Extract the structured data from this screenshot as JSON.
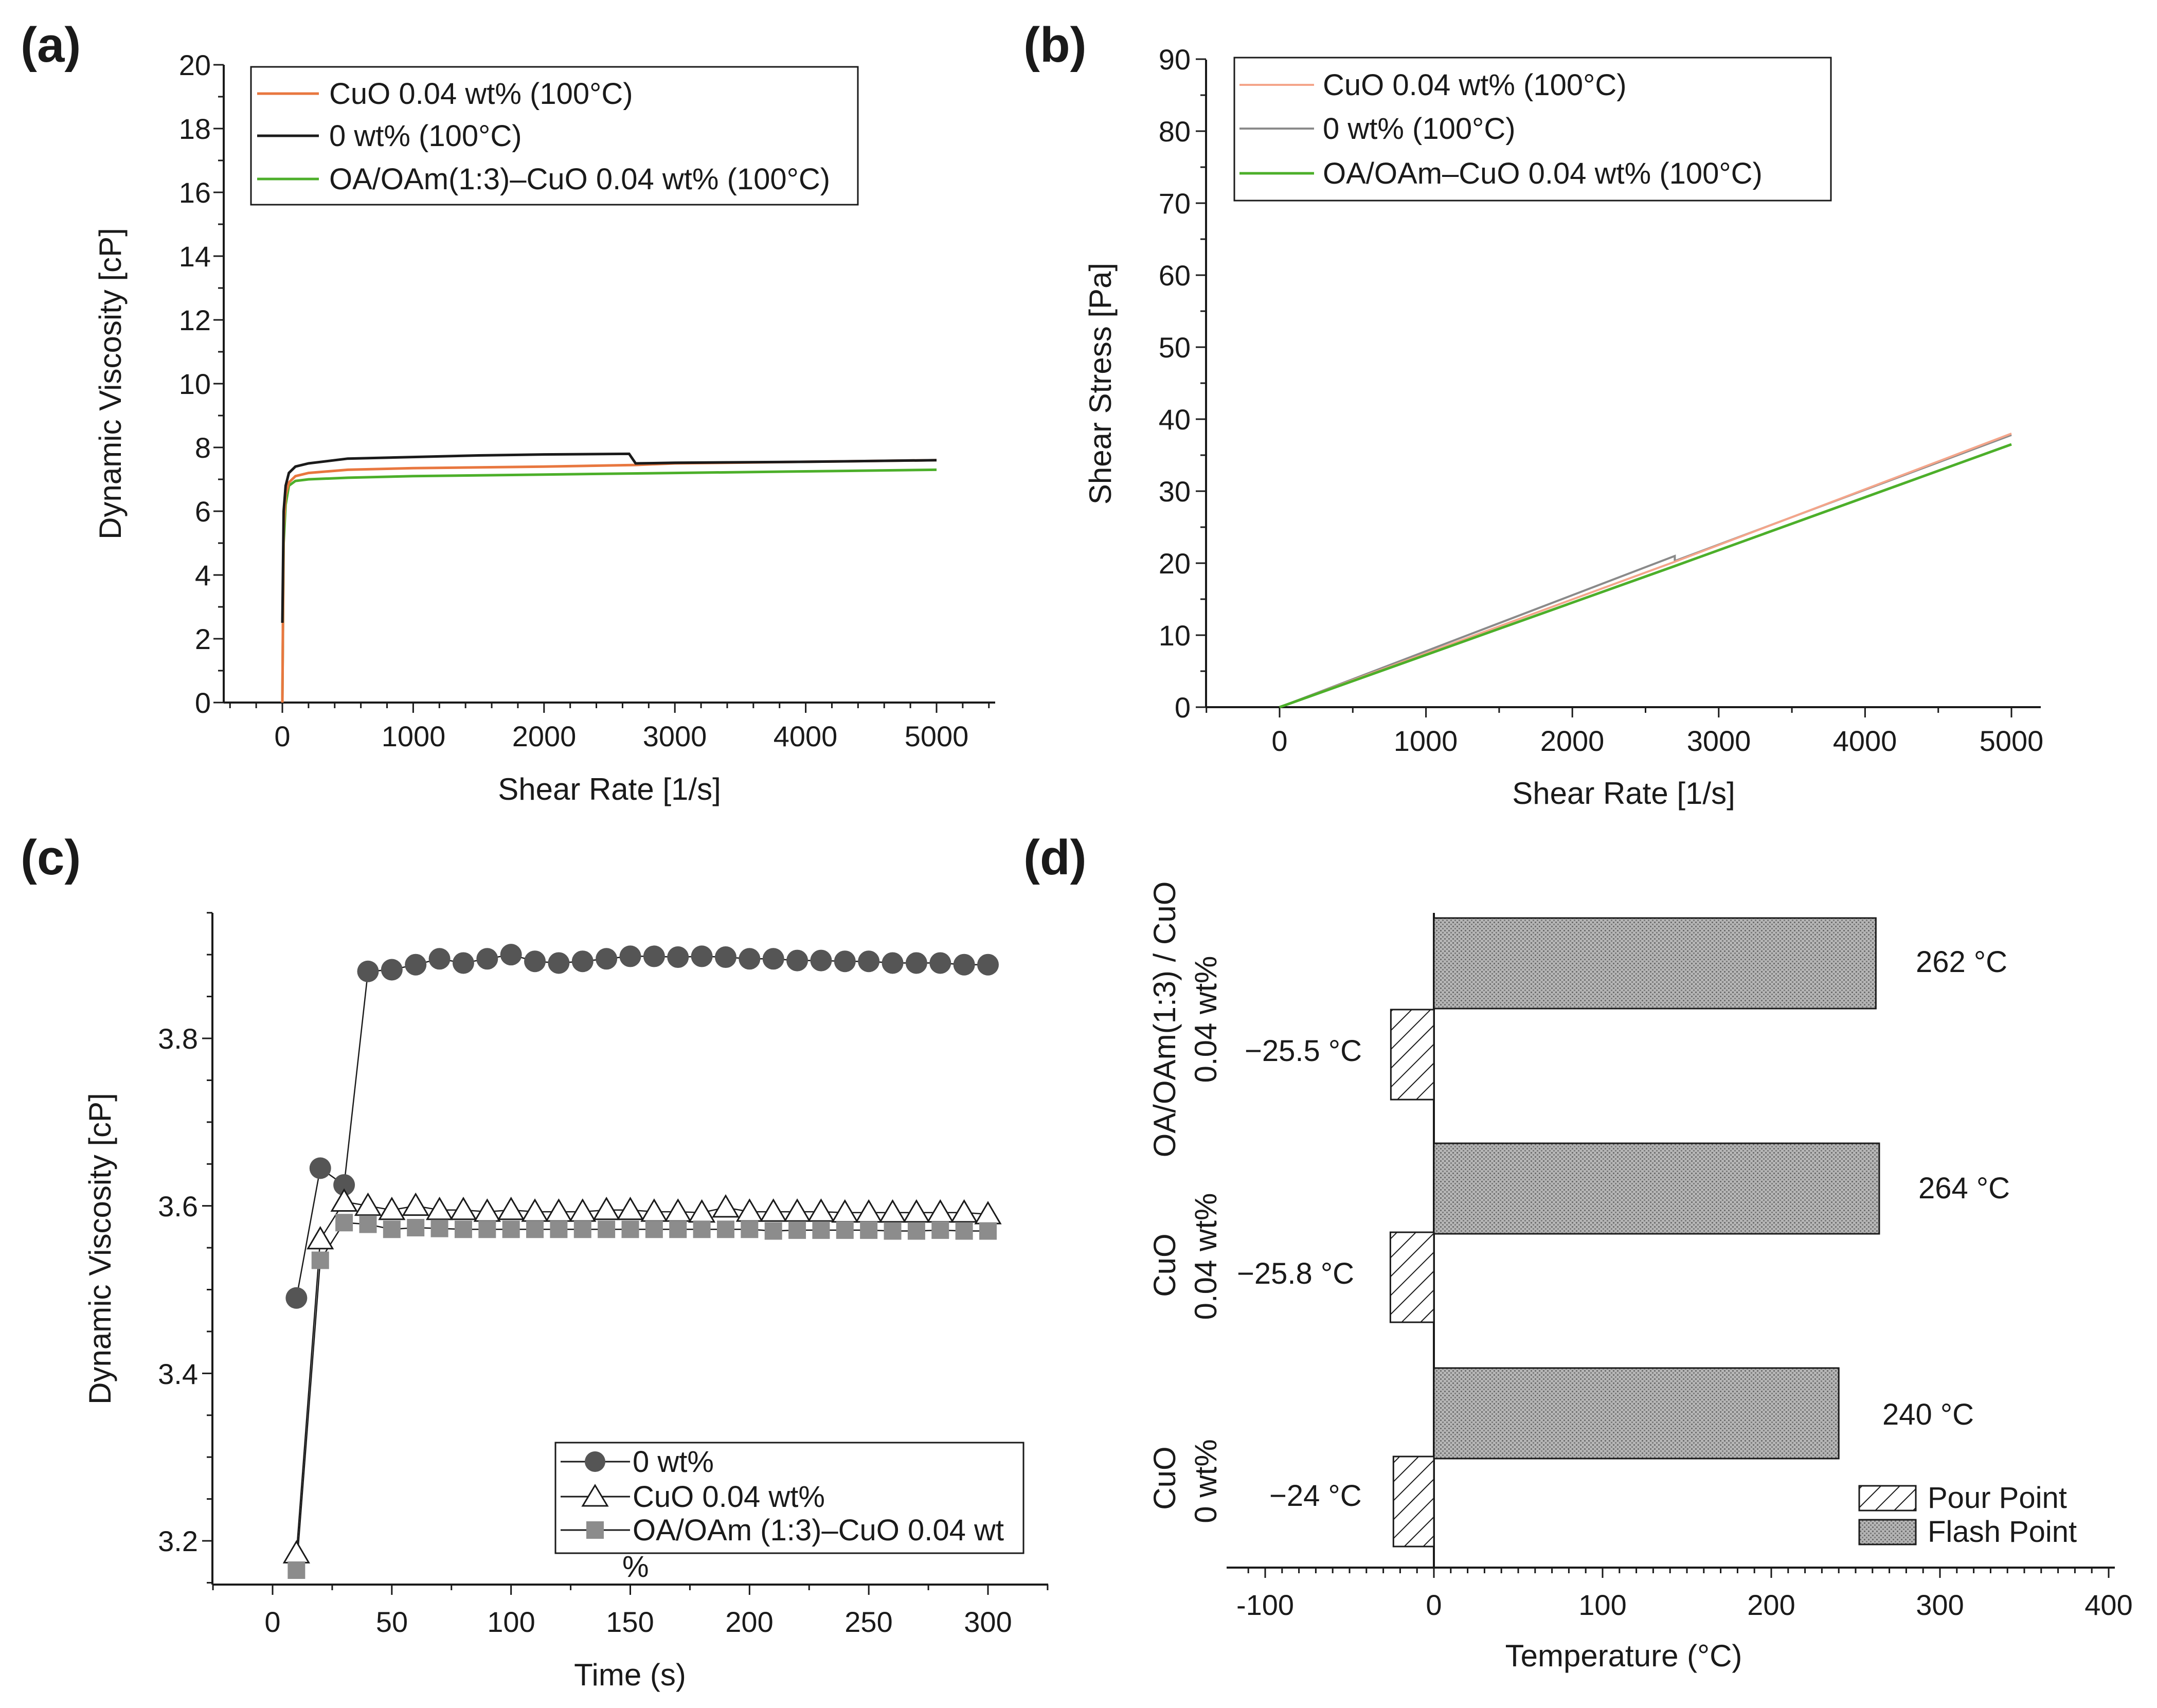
{
  "chart_data": [
    {
      "id": "a",
      "panel_label": "(a)",
      "type": "line",
      "xlabel": "Shear Rate [1/s]",
      "ylabel": "Dynamic Viscosity [cP]",
      "xlim": [
        -400,
        5500
      ],
      "ylim": [
        0,
        20
      ],
      "xticks": [
        "0",
        "1000",
        "2000",
        "3000",
        "4000",
        "5000"
      ],
      "yticks": [
        "0",
        "2",
        "4",
        "6",
        "8",
        "10",
        "12",
        "14",
        "16",
        "18",
        "20"
      ],
      "legend": [
        "CuO 0.04 wt% (100°C)",
        "0 wt% (100°C)",
        "OA/OAm(1:3)–CuO 0.04 wt% (100°C)"
      ],
      "series": [
        {
          "name": "CuO 0.04 wt% (100°C)",
          "color": "#e8773f",
          "x": [
            0,
            10,
            25,
            50,
            100,
            200,
            500,
            1000,
            2000,
            2700,
            3000,
            4000,
            5000
          ],
          "y": [
            0,
            5.5,
            6.5,
            6.9,
            7.1,
            7.2,
            7.3,
            7.35,
            7.4,
            7.45,
            7.5,
            7.55,
            7.6
          ]
        },
        {
          "name": "0 wt% (100°C)",
          "color": "#1a1a1a",
          "x": [
            0,
            10,
            25,
            50,
            100,
            200,
            500,
            1000,
            1500,
            2000,
            2650,
            2700,
            3000,
            4000,
            5000
          ],
          "y": [
            2.5,
            6.0,
            6.8,
            7.2,
            7.4,
            7.5,
            7.65,
            7.7,
            7.75,
            7.78,
            7.8,
            7.5,
            7.52,
            7.55,
            7.6
          ]
        },
        {
          "name": "OA/OAm(1:3)–CuO 0.04 wt% (100°C)",
          "color": "#4caf2a",
          "x": [
            0,
            10,
            25,
            50,
            100,
            200,
            500,
            1000,
            2000,
            3000,
            4000,
            5000
          ],
          "y": [
            0,
            5.0,
            6.2,
            6.8,
            6.95,
            7.0,
            7.05,
            7.1,
            7.15,
            7.2,
            7.25,
            7.3
          ]
        }
      ]
    },
    {
      "id": "b",
      "panel_label": "(b)",
      "type": "line",
      "xlabel": "Shear Rate [1/s]",
      "ylabel": "Shear Stress [Pa]",
      "xlim": [
        -500,
        5200
      ],
      "ylim": [
        0,
        90
      ],
      "xticks": [
        "0",
        "1000",
        "2000",
        "3000",
        "4000",
        "5000"
      ],
      "yticks": [
        "0",
        "10",
        "20",
        "30",
        "40",
        "50",
        "60",
        "70",
        "80",
        "90"
      ],
      "legend": [
        "CuO 0.04 wt% (100°C)",
        "0 wt% (100°C)",
        "OA/OAm–CuO 0.04 wt% (100°C)"
      ],
      "series": [
        {
          "name": "CuO 0.04 wt% (100°C)",
          "color": "#f4a58a",
          "x": [
            0,
            2700,
            5000
          ],
          "y": [
            0,
            20.2,
            38.0
          ]
        },
        {
          "name": "0 wt% (100°C)",
          "color": "#8a8a8a",
          "x": [
            0,
            2700,
            2700,
            5000
          ],
          "y": [
            0,
            21.0,
            20.3,
            37.8
          ]
        },
        {
          "name": "OA/OAm–CuO 0.04 wt% (100°C)",
          "color": "#4caf2a",
          "x": [
            0,
            2700,
            5000
          ],
          "y": [
            0,
            19.6,
            36.5
          ]
        }
      ]
    },
    {
      "id": "c",
      "panel_label": "(c)",
      "type": "scatter",
      "xlabel": "Time (s)",
      "ylabel": "Dynamic Viscosity [cP]",
      "xlim": [
        -25,
        325
      ],
      "ylim": [
        3.15,
        3.95
      ],
      "xticks": [
        "0",
        "50",
        "100",
        "150",
        "200",
        "250",
        "300"
      ],
      "yticks": [
        "3.2",
        "3.4",
        "3.6",
        "3.8"
      ],
      "ytick_values": [
        3.2,
        3.4,
        3.6,
        3.8
      ],
      "legend": [
        "0 wt%",
        "CuO 0.04 wt%",
        "OA/OAm (1:3)–CuO 0.04 wt"
      ],
      "legend_overflow": "%",
      "x": [
        10,
        20,
        30,
        40,
        50,
        60,
        70,
        80,
        90,
        100,
        110,
        120,
        130,
        140,
        150,
        160,
        170,
        180,
        190,
        200,
        210,
        220,
        230,
        240,
        250,
        260,
        270,
        280,
        290,
        300
      ],
      "series": [
        {
          "name": "0 wt%",
          "marker": "circle",
          "color": "#555555",
          "values": [
            3.49,
            3.645,
            3.625,
            3.88,
            3.882,
            3.888,
            3.895,
            3.89,
            3.895,
            3.9,
            3.892,
            3.89,
            3.892,
            3.895,
            3.898,
            3.898,
            3.897,
            3.898,
            3.897,
            3.895,
            3.895,
            3.893,
            3.893,
            3.892,
            3.892,
            3.89,
            3.89,
            3.89,
            3.888,
            3.888
          ]
        },
        {
          "name": "CuO 0.04 wt%",
          "marker": "triangle",
          "color": "#1a1a1a",
          "values": [
            3.185,
            3.56,
            3.605,
            3.6,
            3.595,
            3.6,
            3.595,
            3.595,
            3.593,
            3.595,
            3.593,
            3.593,
            3.593,
            3.595,
            3.595,
            3.593,
            3.593,
            3.592,
            3.598,
            3.593,
            3.593,
            3.593,
            3.593,
            3.592,
            3.592,
            3.592,
            3.592,
            3.592,
            3.592,
            3.59
          ]
        },
        {
          "name": "OA/OAm (1:3)–CuO 0.04 wt",
          "marker": "square",
          "color": "#8c8c8c",
          "values": [
            3.165,
            3.535,
            3.58,
            3.578,
            3.572,
            3.574,
            3.573,
            3.572,
            3.572,
            3.572,
            3.572,
            3.572,
            3.572,
            3.572,
            3.572,
            3.572,
            3.572,
            3.572,
            3.572,
            3.572,
            3.57,
            3.571,
            3.571,
            3.571,
            3.571,
            3.57,
            3.57,
            3.571,
            3.57,
            3.57
          ]
        }
      ]
    },
    {
      "id": "d",
      "panel_label": "(d)",
      "type": "bar",
      "orientation": "horizontal",
      "xlabel": "Temperature (°C)",
      "xlim": [
        -110,
        400
      ],
      "xticks": [
        "-100",
        "0",
        "100",
        "200",
        "300",
        "400"
      ],
      "xtick_values": [
        -100,
        0,
        100,
        200,
        300,
        400
      ],
      "categories": [
        {
          "line1": "OA/OAm(1:3) / CuO",
          "line2": "0.04 wt%"
        },
        {
          "line1": "CuO",
          "line2": "0.04 wt%"
        },
        {
          "line1": "CuO",
          "line2": "0 wt%"
        }
      ],
      "series": [
        {
          "name": "Pour Point",
          "values": [
            -25.5,
            -25.8,
            -24
          ],
          "labels": [
            "−25.5 °C",
            "−25.8 °C",
            "−24 °C"
          ]
        },
        {
          "name": "Flash Point",
          "values": [
            262,
            264,
            240
          ],
          "labels": [
            "262  °C",
            "264  °C",
            "240  °C"
          ]
        }
      ],
      "legend": [
        "Pour Point",
        "Flash Point"
      ]
    }
  ]
}
